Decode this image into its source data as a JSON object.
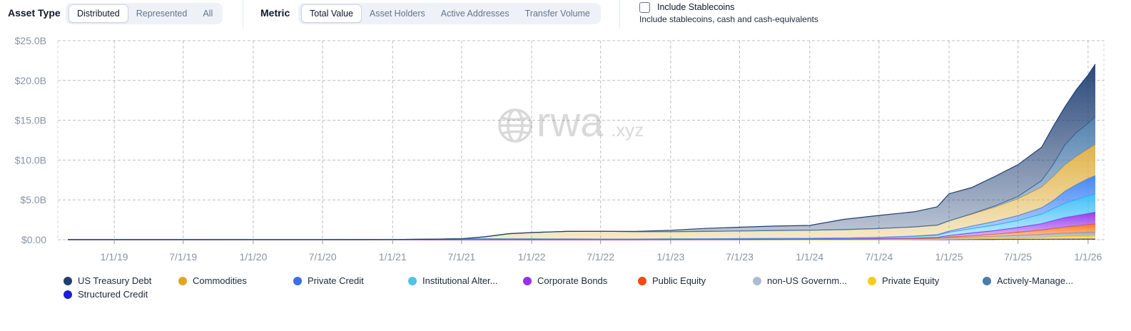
{
  "controls": {
    "asset_type": {
      "label": "Asset Type",
      "options": [
        "Distributed",
        "Represented",
        "All"
      ],
      "selected": "Distributed"
    },
    "metric": {
      "label": "Metric",
      "options": [
        "Total Value",
        "Asset Holders",
        "Active Addresses",
        "Transfer Volume"
      ],
      "selected": "Total Value"
    },
    "stablecoins": {
      "label": "Include Stablecoins",
      "description": "Include stablecoins, cash and cash-equivalents",
      "checked": false
    }
  },
  "watermark": {
    "main": "rwa",
    "suffix": ".xyz"
  },
  "chart_data": {
    "type": "area",
    "stacked": true,
    "x_ticks": [
      "1/1/19",
      "7/1/19",
      "1/1/20",
      "7/1/20",
      "1/1/21",
      "7/1/21",
      "1/1/22",
      "7/1/22",
      "1/1/23",
      "7/1/23",
      "1/1/24",
      "7/1/24",
      "1/1/25",
      "7/1/25",
      "1/1/26"
    ],
    "y_ticks": [
      "$0.00",
      "$5.0B",
      "$10.0B",
      "$15.0B",
      "$20.0B",
      "$25.0B"
    ],
    "ylim": [
      0,
      25
    ],
    "x_domain": [
      "2018-09-01",
      "2026-01-20"
    ],
    "grid": true,
    "legend_position": "bottom",
    "x": [
      "2018-09-01",
      "2019-07-01",
      "2020-07-01",
      "2021-01-01",
      "2021-04-01",
      "2021-07-01",
      "2021-09-01",
      "2021-11-01",
      "2022-01-01",
      "2022-04-01",
      "2022-07-01",
      "2022-10-01",
      "2023-01-01",
      "2023-04-01",
      "2023-07-01",
      "2023-10-01",
      "2024-01-01",
      "2024-04-01",
      "2024-07-01",
      "2024-10-01",
      "2024-12-01",
      "2025-01-01",
      "2025-03-01",
      "2025-05-01",
      "2025-07-01",
      "2025-09-01",
      "2025-10-01",
      "2025-11-01",
      "2025-12-01",
      "2026-01-01",
      "2026-01-20"
    ],
    "series": [
      {
        "name": "Structured Credit",
        "color": "#1d1ddb",
        "values": [
          0,
          0,
          0,
          0,
          0,
          0,
          0,
          0,
          0,
          0,
          0,
          0,
          0,
          0,
          0,
          0,
          0,
          0,
          0,
          0,
          0,
          0.02,
          0.03,
          0.04,
          0.05,
          0.06,
          0.07,
          0.08,
          0.08,
          0.09,
          0.09
        ]
      },
      {
        "name": "Private Equity",
        "color": "#facc15",
        "values": [
          0,
          0,
          0,
          0,
          0,
          0,
          0,
          0,
          0,
          0,
          0,
          0,
          0,
          0,
          0,
          0,
          0,
          0,
          0,
          0.02,
          0.03,
          0.05,
          0.08,
          0.12,
          0.18,
          0.25,
          0.3,
          0.35,
          0.38,
          0.4,
          0.42
        ]
      },
      {
        "name": "non-US Government Debt",
        "color": "#94a3b8",
        "values": [
          0,
          0,
          0,
          0,
          0,
          0,
          0,
          0,
          0,
          0,
          0,
          0,
          0.01,
          0.02,
          0.03,
          0.04,
          0.05,
          0.06,
          0.08,
          0.1,
          0.12,
          0.15,
          0.2,
          0.25,
          0.3,
          0.35,
          0.38,
          0.4,
          0.42,
          0.45,
          0.45
        ]
      },
      {
        "name": "Public Equity",
        "color": "#f97316",
        "values": [
          0,
          0,
          0,
          0,
          0,
          0,
          0,
          0,
          0,
          0,
          0,
          0,
          0,
          0,
          0,
          0,
          0,
          0,
          0.01,
          0.02,
          0.05,
          0.1,
          0.18,
          0.28,
          0.4,
          0.55,
          0.65,
          0.75,
          0.85,
          0.95,
          1.0
        ]
      },
      {
        "name": "Corporate Bonds",
        "color": "#9333ea",
        "values": [
          0,
          0,
          0,
          0,
          0,
          0,
          0,
          0,
          0,
          0,
          0,
          0,
          0.01,
          0.01,
          0.01,
          0.02,
          0.02,
          0.03,
          0.04,
          0.06,
          0.1,
          0.2,
          0.35,
          0.45,
          0.6,
          0.8,
          1.0,
          1.2,
          1.3,
          1.4,
          1.5
        ]
      },
      {
        "name": "Institutional Alternative Funds",
        "color": "#38bdf8",
        "values": [
          0.01,
          0.01,
          0.02,
          0.03,
          0.05,
          0.12,
          0.12,
          0.1,
          0.1,
          0.09,
          0.08,
          0.08,
          0.08,
          0.08,
          0.09,
          0.1,
          0.1,
          0.12,
          0.15,
          0.2,
          0.25,
          0.4,
          0.55,
          0.7,
          0.9,
          1.2,
          1.5,
          1.8,
          2.0,
          2.2,
          2.3
        ]
      },
      {
        "name": "Private Credit",
        "color": "#3b82f6",
        "values": [
          0,
          0,
          0,
          0,
          0,
          0,
          0,
          0,
          0,
          0,
          0,
          0,
          0,
          0,
          0,
          0,
          0,
          0,
          0.02,
          0.05,
          0.08,
          0.15,
          0.3,
          0.45,
          0.6,
          0.8,
          1.0,
          1.5,
          1.9,
          2.2,
          2.3
        ]
      },
      {
        "name": "Commodities",
        "color": "#e0b040",
        "values": [
          0,
          0,
          0,
          0,
          0,
          0,
          0.25,
          0.65,
          0.8,
          0.95,
          0.98,
          0.92,
          0.9,
          0.93,
          0.96,
          1.0,
          1.02,
          1.05,
          1.1,
          1.15,
          1.2,
          1.3,
          1.5,
          1.8,
          2.1,
          2.6,
          3.0,
          3.3,
          3.5,
          3.7,
          3.9
        ]
      },
      {
        "name": "Actively-Managed Strategies",
        "color": "#4b7bab",
        "values": [
          0,
          0,
          0,
          0,
          0,
          0,
          0,
          0,
          0,
          0,
          0,
          0,
          0,
          0,
          0,
          0,
          0,
          0,
          0,
          0,
          0,
          0,
          0.05,
          0.15,
          0.3,
          0.8,
          1.5,
          2.5,
          3.0,
          3.2,
          3.5
        ]
      },
      {
        "name": "US Treasury Debt",
        "color": "#1f3f73",
        "values": [
          0,
          0,
          0,
          0,
          0,
          0,
          0,
          0,
          0,
          0,
          0,
          0.05,
          0.18,
          0.38,
          0.48,
          0.55,
          0.6,
          1.3,
          1.65,
          1.9,
          2.3,
          3.4,
          3.3,
          3.7,
          4.0,
          4.2,
          4.8,
          4.8,
          5.4,
          6.1,
          6.6
        ]
      }
    ]
  },
  "legend": [
    {
      "label": "US Treasury Debt",
      "color": "#1f3f73"
    },
    {
      "label": "Commodities",
      "color": "#e0a526"
    },
    {
      "label": "Private Credit",
      "color": "#3b6fe6"
    },
    {
      "label": "Institutional Alter...",
      "color": "#4dc3e8"
    },
    {
      "label": "Corporate Bonds",
      "color": "#9333ea"
    },
    {
      "label": "Public Equity",
      "color": "#f04a12"
    },
    {
      "label": "non-US Governm...",
      "color": "#aabdd2"
    },
    {
      "label": "Private Equity",
      "color": "#facc15"
    },
    {
      "label": "Actively-Manage...",
      "color": "#4b7bab"
    },
    {
      "label": "Structured Credit",
      "color": "#1d1ddb"
    }
  ]
}
